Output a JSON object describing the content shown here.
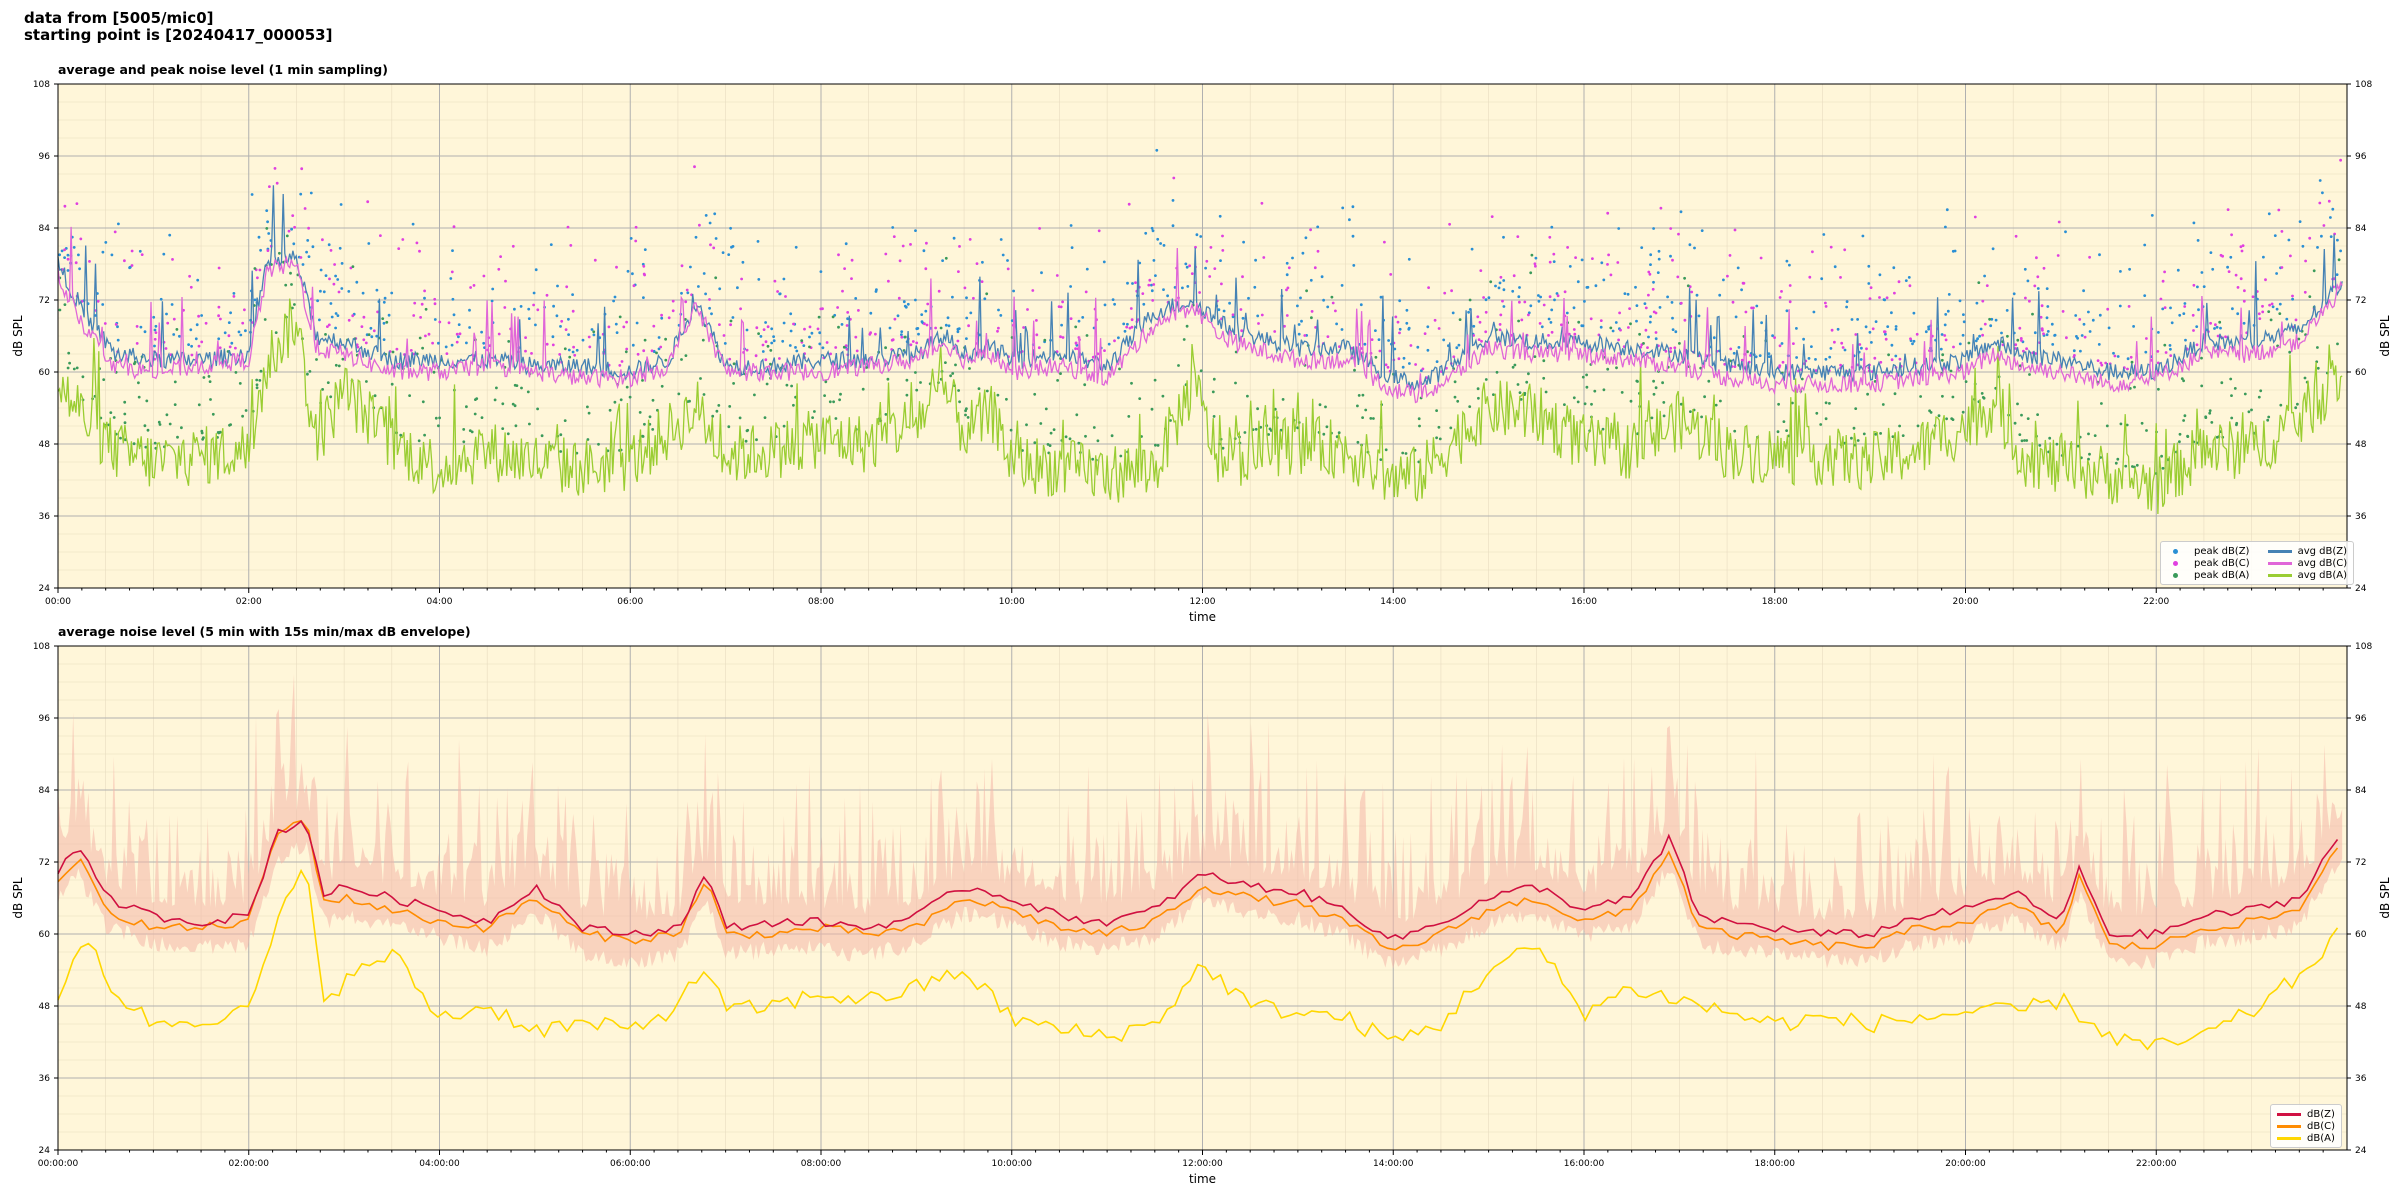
{
  "header": {
    "line1": "data from [5005/mic0]",
    "line2": "starting point is [20240417_000053]"
  },
  "colors": {
    "background": "#fff6d9",
    "grid_major": "#b0b0b0",
    "grid_minor": "#e8dcc0",
    "peak_z": "#2a8fd4",
    "peak_c": "#e040e0",
    "peak_a": "#3a9a5a",
    "avg_z": "#4682b4",
    "avg_c": "#e066d8",
    "avg_a": "#9acd32",
    "dbz": "#d01040",
    "dbc": "#ff8c00",
    "dba": "#ffd700",
    "envelope": "#f4b6a8"
  },
  "chart_data": [
    {
      "type": "line",
      "title": "average and peak noise level (1 min sampling)",
      "xlabel": "time",
      "ylabel": "dB SPL",
      "ylim": [
        24,
        108
      ],
      "yticks": [
        "24",
        "36",
        "48",
        "60",
        "72",
        "84",
        "96",
        "108"
      ],
      "x_tick_labels": [
        "00:00",
        "02:00",
        "04:00",
        "06:00",
        "08:00",
        "10:00",
        "12:00",
        "14:00",
        "16:00",
        "18:00",
        "20:00",
        "22:00"
      ],
      "x_hours": [
        0,
        2,
        4,
        6,
        8,
        10,
        12,
        14,
        16,
        18,
        20,
        22
      ],
      "grid": true,
      "legend_position": "lower-right",
      "legend": [
        "peak dB(Z)",
        "peak dB(C)",
        "peak dB(A)",
        "avg dB(Z)",
        "avg dB(C)",
        "avg dB(A)"
      ],
      "series": [
        {
          "name": "avg dB(Z)",
          "hours": [
            0,
            0.3,
            0.6,
            1.0,
            1.5,
            2.0,
            2.2,
            2.5,
            2.7,
            3.0,
            3.5,
            4.0,
            4.5,
            5.0,
            5.5,
            6.0,
            6.4,
            6.7,
            7.0,
            7.5,
            8.0,
            8.5,
            9.0,
            9.3,
            9.5,
            9.8,
            10.0,
            10.5,
            11.0,
            11.5,
            11.9,
            12.2,
            12.5,
            13.0,
            13.5,
            14.0,
            14.3,
            14.6,
            15.0,
            15.5,
            16.0,
            16.5,
            17.0,
            17.5,
            18.0,
            18.5,
            19.0,
            19.5,
            20.0,
            20.3,
            20.6,
            21.0,
            21.5,
            22.0,
            22.5,
            23.0,
            23.5,
            23.95
          ],
          "values": [
            78,
            69,
            63,
            62,
            62,
            63,
            78,
            79,
            66,
            65,
            62,
            62,
            62,
            61,
            61,
            60,
            62,
            72,
            61,
            61,
            62,
            62,
            63,
            66,
            63,
            64,
            62,
            63,
            61,
            70,
            72,
            68,
            66,
            64,
            64,
            59,
            58,
            61,
            66,
            65,
            65,
            64,
            63,
            61,
            60,
            60,
            60,
            61,
            62,
            65,
            63,
            62,
            60,
            60,
            65,
            65,
            67,
            75
          ]
        },
        {
          "name": "avg dB(C)",
          "hours": [
            0,
            0.3,
            0.6,
            1.0,
            1.5,
            2.0,
            2.2,
            2.5,
            2.7,
            3.0,
            3.5,
            4.0,
            4.5,
            5.0,
            5.5,
            6.0,
            6.4,
            6.7,
            7.0,
            7.5,
            8.0,
            8.5,
            9.0,
            9.3,
            9.5,
            9.8,
            10.0,
            10.5,
            11.0,
            11.5,
            11.9,
            12.2,
            12.5,
            13.0,
            13.5,
            14.0,
            14.3,
            14.6,
            15.0,
            15.5,
            16.0,
            16.5,
            17.0,
            17.5,
            18.0,
            18.5,
            19.0,
            19.5,
            20.0,
            20.3,
            20.6,
            21.0,
            21.5,
            22.0,
            22.5,
            23.0,
            23.5,
            23.95
          ],
          "values": [
            76,
            67,
            61,
            60,
            61,
            62,
            77,
            78,
            64,
            63,
            60,
            60,
            61,
            60,
            59,
            59,
            61,
            71,
            60,
            60,
            60,
            61,
            62,
            65,
            62,
            63,
            60,
            61,
            59,
            68,
            71,
            66,
            64,
            62,
            62,
            57,
            56,
            59,
            64,
            63,
            63,
            62,
            61,
            59,
            58,
            58,
            58,
            59,
            60,
            63,
            61,
            60,
            58,
            59,
            63,
            63,
            65,
            74
          ]
        },
        {
          "name": "avg dB(A)",
          "hours": [
            0,
            0.3,
            0.6,
            1.0,
            1.5,
            2.0,
            2.2,
            2.5,
            2.7,
            3.0,
            3.5,
            4.0,
            4.5,
            5.0,
            5.5,
            6.0,
            6.4,
            6.7,
            7.0,
            7.5,
            8.0,
            8.5,
            9.0,
            9.3,
            9.5,
            9.8,
            10.0,
            10.5,
            11.0,
            11.5,
            11.9,
            12.2,
            12.5,
            13.0,
            13.5,
            14.0,
            14.3,
            14.6,
            15.0,
            15.5,
            16.0,
            16.5,
            17.0,
            17.5,
            18.0,
            18.5,
            19.0,
            19.5,
            20.0,
            20.3,
            20.6,
            21.0,
            21.5,
            22.0,
            22.5,
            23.0,
            23.5,
            23.95
          ],
          "values": [
            58,
            52,
            47,
            45,
            46,
            47,
            62,
            69,
            48,
            57,
            48,
            44,
            47,
            45,
            44,
            45,
            50,
            54,
            46,
            47,
            49,
            48,
            52,
            57,
            50,
            53,
            45,
            44,
            43,
            44,
            58,
            44,
            47,
            48,
            47,
            42,
            43,
            48,
            54,
            53,
            48,
            47,
            52,
            47,
            46,
            46,
            45,
            47,
            51,
            55,
            46,
            44,
            43,
            41,
            47,
            47,
            52,
            60
          ]
        }
      ]
    },
    {
      "type": "line",
      "title": "average noise level (5 min with 15s min/max dB envelope)",
      "xlabel": "time",
      "ylabel": "dB SPL",
      "ylim": [
        24,
        108
      ],
      "yticks": [
        "24",
        "36",
        "48",
        "60",
        "72",
        "84",
        "96",
        "108"
      ],
      "x_tick_labels": [
        "00:00:00",
        "02:00:00",
        "04:00:00",
        "06:00:00",
        "08:00:00",
        "10:00:00",
        "12:00:00",
        "14:00:00",
        "16:00:00",
        "18:00:00",
        "20:00:00",
        "22:00:00"
      ],
      "x_hours": [
        0,
        2,
        4,
        6,
        8,
        10,
        12,
        14,
        16,
        18,
        20,
        22
      ],
      "grid": true,
      "legend_position": "lower-right",
      "legend": [
        "dB(Z)",
        "dB(C)",
        "dB(A)"
      ],
      "series": [
        {
          "name": "dB(Z)",
          "hours": [
            0,
            0.2,
            0.5,
            1.0,
            1.5,
            2.0,
            2.3,
            2.6,
            2.8,
            3.0,
            3.5,
            4.0,
            4.5,
            5.0,
            5.5,
            6.0,
            6.5,
            6.8,
            7.0,
            7.5,
            8.0,
            8.5,
            9.0,
            9.5,
            10.0,
            10.5,
            11.0,
            11.5,
            12.0,
            12.5,
            13.0,
            13.5,
            14.0,
            14.5,
            15.0,
            15.5,
            16.0,
            16.5,
            16.9,
            17.2,
            17.5,
            18.0,
            18.5,
            19.0,
            19.5,
            20.0,
            20.5,
            21.0,
            21.2,
            21.5,
            22.0,
            22.5,
            23.0,
            23.5,
            23.9
          ],
          "values": [
            70,
            75,
            66,
            63,
            62,
            63,
            77,
            79,
            66,
            68,
            66,
            64,
            62,
            68,
            61,
            60,
            61,
            70,
            61,
            62,
            62,
            61,
            63,
            68,
            66,
            63,
            62,
            64,
            70,
            68,
            67,
            64,
            59,
            62,
            66,
            68,
            64,
            66,
            76,
            63,
            62,
            61,
            60,
            60,
            63,
            64,
            67,
            62,
            71,
            60,
            60,
            63,
            64,
            66,
            76
          ]
        },
        {
          "name": "dB(C)",
          "hours": [
            0,
            0.2,
            0.5,
            1.0,
            1.5,
            2.0,
            2.3,
            2.6,
            2.8,
            3.0,
            3.5,
            4.0,
            4.5,
            5.0,
            5.5,
            6.0,
            6.5,
            6.8,
            7.0,
            7.5,
            8.0,
            8.5,
            9.0,
            9.5,
            10.0,
            10.5,
            11.0,
            11.5,
            12.0,
            12.5,
            13.0,
            13.5,
            14.0,
            14.5,
            15.0,
            15.5,
            16.0,
            16.5,
            16.9,
            17.2,
            17.5,
            18.0,
            18.5,
            19.0,
            19.5,
            20.0,
            20.5,
            21.0,
            21.2,
            21.5,
            22.0,
            22.5,
            23.0,
            23.5,
            23.9
          ],
          "values": [
            68,
            73,
            64,
            61,
            61,
            62,
            77,
            79,
            65,
            66,
            64,
            62,
            61,
            66,
            60,
            59,
            60,
            69,
            60,
            60,
            61,
            60,
            61,
            66,
            64,
            61,
            60,
            62,
            68,
            66,
            65,
            62,
            57,
            60,
            64,
            66,
            62,
            64,
            74,
            61,
            60,
            59,
            58,
            58,
            61,
            62,
            65,
            60,
            70,
            58,
            58,
            61,
            62,
            64,
            75
          ]
        },
        {
          "name": "dB(A)",
          "hours": [
            0,
            0.3,
            0.6,
            1.0,
            1.5,
            2.0,
            2.3,
            2.6,
            2.8,
            3.0,
            3.5,
            4.0,
            4.5,
            5.0,
            5.5,
            6.0,
            6.5,
            6.8,
            7.0,
            7.5,
            8.0,
            8.5,
            9.0,
            9.5,
            10.0,
            10.5,
            11.0,
            11.5,
            12.0,
            12.5,
            13.0,
            13.5,
            14.0,
            14.5,
            15.0,
            15.5,
            16.0,
            16.5,
            17.0,
            17.5,
            18.0,
            18.5,
            19.0,
            19.5,
            20.0,
            20.5,
            21.0,
            21.5,
            22.0,
            22.5,
            23.0,
            23.5,
            23.9
          ],
          "values": [
            48,
            60,
            50,
            45,
            46,
            47,
            62,
            71,
            49,
            52,
            57,
            46,
            48,
            44,
            45,
            44,
            48,
            55,
            47,
            48,
            50,
            49,
            51,
            54,
            46,
            44,
            43,
            45,
            55,
            48,
            47,
            46,
            42,
            45,
            54,
            58,
            47,
            51,
            49,
            47,
            45,
            46,
            45,
            46,
            47,
            47,
            49,
            43,
            41,
            43,
            47,
            53,
            60
          ]
        }
      ]
    }
  ]
}
